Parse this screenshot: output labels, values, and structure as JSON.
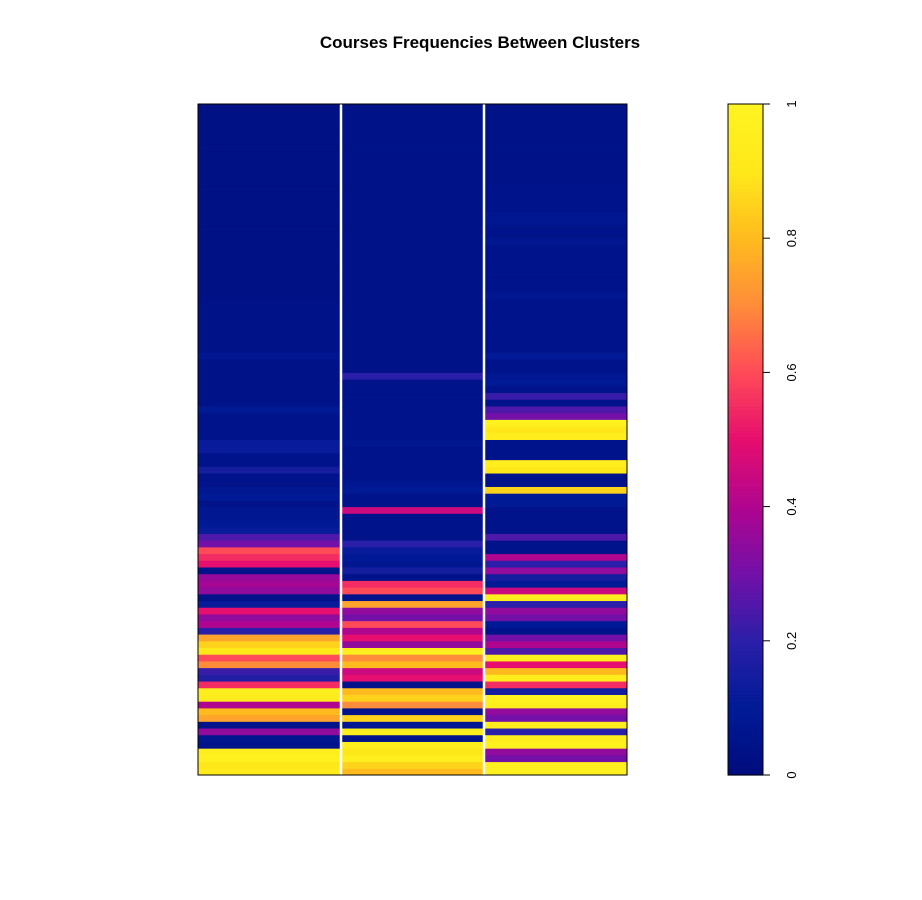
{
  "chart_data": {
    "type": "heatmap",
    "title": "Courses Frequencies Between Clusters",
    "xlabel": "",
    "ylabel": "",
    "n_columns": 3,
    "n_rows": 100,
    "value_range": [
      0,
      1
    ],
    "colorbar": {
      "placement": "right",
      "ticks": [
        0,
        0.2,
        0.4,
        0.6,
        0.8,
        1
      ],
      "tick_labels": [
        "0",
        "0.2",
        "0.4",
        "0.6",
        "0.8",
        "1"
      ],
      "colormap": [
        "#000c7d",
        "#001a96",
        "#2a1fa8",
        "#7210a8",
        "#b0058f",
        "#e60e6e",
        "#ff4a58",
        "#ff8c3a",
        "#ffbb1e",
        "#ffe81a",
        "#fff321"
      ]
    },
    "column_separator_color": "#ffffff",
    "columns": [
      {
        "index": 1,
        "values": [
          0.92,
          0.9,
          0.98,
          0.95,
          0.05,
          0.08,
          0.35,
          0.05,
          0.75,
          0.8,
          0.4,
          0.92,
          0.95,
          0.55,
          0.18,
          0.22,
          0.7,
          0.6,
          0.9,
          0.85,
          0.75,
          0.2,
          0.4,
          0.35,
          0.5,
          0.12,
          0.05,
          0.35,
          0.38,
          0.36,
          0.05,
          0.5,
          0.55,
          0.6,
          0.3,
          0.25,
          0.12,
          0.1,
          0.08,
          0.08,
          0.05,
          0.1,
          0.08,
          0.05,
          0.05,
          0.15,
          0.05,
          0.05,
          0.12,
          0.12,
          0.05,
          0.05,
          0.05,
          0.05,
          0.1,
          0.04,
          0.04,
          0.04,
          0.04,
          0.04,
          0.04,
          0.04,
          0.08,
          0.04,
          0.04,
          0.04,
          0.04,
          0.04,
          0.04,
          0.04,
          0.04,
          0.03,
          0.03,
          0.03,
          0.03,
          0.03,
          0.03,
          0.03,
          0.03,
          0.03,
          0.03,
          0.03,
          0.03,
          0.03,
          0.03,
          0.03,
          0.03,
          0.03,
          0.03,
          0.03,
          0.03,
          0.03,
          0.03,
          0.03,
          0.03,
          0.03,
          0.03,
          0.03,
          0.03,
          0.03
        ]
      },
      {
        "index": 2,
        "values": [
          0.8,
          0.85,
          0.95,
          0.9,
          0.95,
          0.05,
          0.95,
          0.08,
          0.85,
          0.05,
          0.7,
          0.85,
          0.8,
          0.05,
          0.5,
          0.45,
          0.8,
          0.7,
          0.95,
          0.35,
          0.5,
          0.4,
          0.6,
          0.3,
          0.35,
          0.75,
          0.05,
          0.6,
          0.55,
          0.05,
          0.15,
          0.08,
          0.1,
          0.12,
          0.2,
          0.05,
          0.05,
          0.05,
          0.05,
          0.45,
          0.05,
          0.05,
          0.1,
          0.08,
          0.05,
          0.05,
          0.05,
          0.05,
          0.05,
          0.08,
          0.05,
          0.05,
          0.05,
          0.05,
          0.05,
          0.05,
          0.05,
          0.05,
          0.05,
          0.2,
          0.04,
          0.04,
          0.04,
          0.04,
          0.04,
          0.04,
          0.04,
          0.04,
          0.04,
          0.04,
          0.04,
          0.04,
          0.04,
          0.04,
          0.04,
          0.04,
          0.04,
          0.04,
          0.04,
          0.04,
          0.04,
          0.04,
          0.04,
          0.04,
          0.04,
          0.04,
          0.04,
          0.04,
          0.04,
          0.04,
          0.04,
          0.04,
          0.04,
          0.04,
          0.04,
          0.04,
          0.04,
          0.04,
          0.04,
          0.04
        ]
      },
      {
        "index": 3,
        "values": [
          0.98,
          0.98,
          0.3,
          0.35,
          0.98,
          0.95,
          0.2,
          0.95,
          0.3,
          0.35,
          0.95,
          0.98,
          0.15,
          0.55,
          0.95,
          0.8,
          0.5,
          0.95,
          0.25,
          0.4,
          0.3,
          0.05,
          0.1,
          0.3,
          0.35,
          0.2,
          0.95,
          0.45,
          0.1,
          0.15,
          0.35,
          0.2,
          0.4,
          0.05,
          0.05,
          0.25,
          0.05,
          0.05,
          0.05,
          0.05,
          0.1,
          0.1,
          0.85,
          0.05,
          0.05,
          0.9,
          0.95,
          0.05,
          0.05,
          0.05,
          0.95,
          0.9,
          0.98,
          0.3,
          0.25,
          0.05,
          0.22,
          0.05,
          0.1,
          0.08,
          0.05,
          0.05,
          0.1,
          0.05,
          0.05,
          0.05,
          0.05,
          0.05,
          0.05,
          0.05,
          0.05,
          0.08,
          0.05,
          0.05,
          0.05,
          0.05,
          0.05,
          0.05,
          0.05,
          0.08,
          0.05,
          0.05,
          0.08,
          0.08,
          0.05,
          0.05,
          0.05,
          0.05,
          0.04,
          0.04,
          0.04,
          0.04,
          0.04,
          0.04,
          0.04,
          0.04,
          0.04,
          0.04,
          0.04,
          0.04
        ]
      }
    ]
  }
}
